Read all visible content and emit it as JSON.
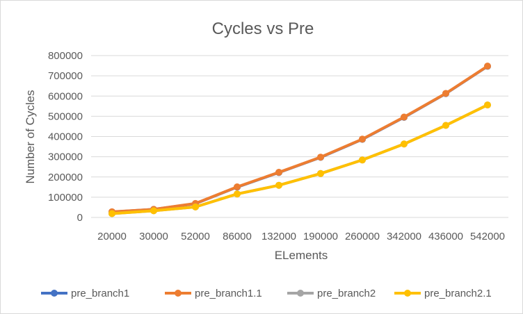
{
  "chart_data": {
    "type": "line",
    "title": "Cycles vs Pre",
    "xlabel": "ELements",
    "ylabel": "Number of Cycles",
    "categories": [
      "20000",
      "30000",
      "52000",
      "86000",
      "132000",
      "190000",
      "260000",
      "342000",
      "436000",
      "542000"
    ],
    "y_ticks": [
      "0",
      "100000",
      "200000",
      "300000",
      "400000",
      "500000",
      "600000",
      "700000",
      "800000"
    ],
    "ylim": [
      0,
      800000
    ],
    "grid": true,
    "legend_position": "bottom",
    "series": [
      {
        "name": "pre_branch1",
        "color": "#4472C4",
        "values": [
          27000,
          40000,
          68000,
          150000,
          222000,
          297000,
          386000,
          495000,
          612000,
          747000
        ]
      },
      {
        "name": "pre_branch1.1",
        "color": "#ED7D31",
        "values": [
          28000,
          40000,
          69000,
          151000,
          223000,
          298000,
          387000,
          496000,
          613000,
          748000
        ]
      },
      {
        "name": "pre_branch2",
        "color": "#A5A5A5",
        "values": [
          19000,
          33000,
          52000,
          116000,
          159000,
          217000,
          284000,
          363000,
          455000,
          556000
        ]
      },
      {
        "name": "pre_branch2.1",
        "color": "#FFC000",
        "values": [
          19000,
          33000,
          52000,
          116000,
          159000,
          217000,
          284000,
          363000,
          455000,
          556000
        ]
      }
    ]
  }
}
